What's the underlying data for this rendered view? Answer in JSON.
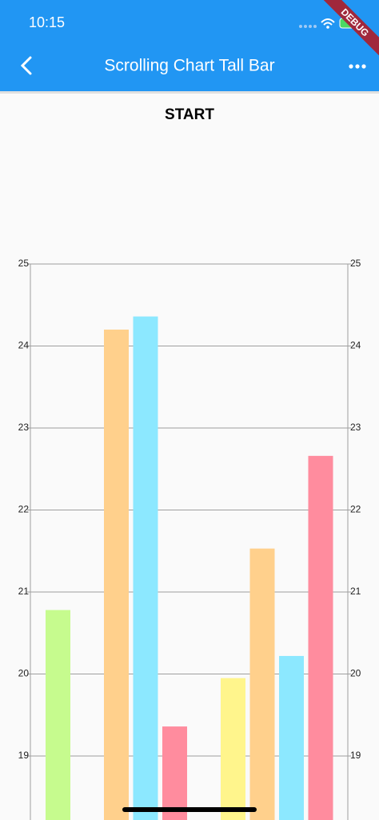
{
  "status_bar": {
    "time": "10:15",
    "banner": "DEBUG"
  },
  "app_bar": {
    "title": "Scrolling Chart Tall Bar"
  },
  "chart_data": {
    "type": "bar",
    "title": "START",
    "categories": [
      null,
      null
    ],
    "series": [
      {
        "color": "#c6fb8e",
        "values": [
          20.78,
          null
        ]
      },
      {
        "color": "#fff58c",
        "values": [
          null,
          19.95
        ]
      },
      {
        "color": "#ffd08c",
        "values": [
          24.2,
          21.53
        ]
      },
      {
        "color": "#8ce8ff",
        "values": [
          24.36,
          20.22
        ]
      },
      {
        "color": "#ff8c9e",
        "values": [
          19.36,
          22.66
        ]
      }
    ],
    "ylim": [
      18,
      25
    ],
    "yticks": [
      19,
      20,
      21,
      22,
      23,
      24,
      25
    ],
    "grid": true,
    "right_axis": true
  }
}
